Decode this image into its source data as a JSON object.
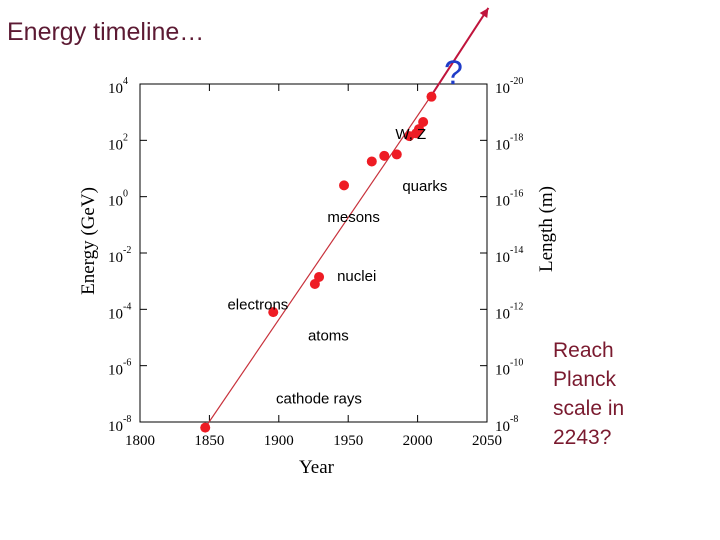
{
  "slide": {
    "title": "Energy timeline…",
    "side_note": [
      "Reach",
      "Planck",
      "scale in",
      "2243?"
    ]
  },
  "chart_data": {
    "type": "scatter",
    "title": "",
    "xlabel": "Year",
    "ylabel": "Energy (GeV)",
    "y2label": "Length (m)",
    "xlim": [
      1800,
      2050
    ],
    "x_ticks": [
      1800,
      1850,
      1900,
      1950,
      2000,
      2050
    ],
    "ylim": [
      -8,
      4
    ],
    "y_scale": "log10",
    "y_ticks_exponent": [
      4,
      2,
      0,
      -2,
      -4,
      -6,
      -8
    ],
    "y2_ticks_exponent": [
      -20,
      -18,
      -16,
      -14,
      -12,
      -10,
      -8
    ],
    "points": [
      {
        "x": 1847,
        "y": -8.2
      },
      {
        "x": 1896,
        "y": -4.1
      },
      {
        "x": 1926,
        "y": -3.1
      },
      {
        "x": 1929,
        "y": -2.85
      },
      {
        "x": 1947,
        "y": 0.4
      },
      {
        "x": 1967,
        "y": 1.25
      },
      {
        "x": 1976,
        "y": 1.45
      },
      {
        "x": 1985,
        "y": 1.5
      },
      {
        "x": 1994,
        "y": 2.15
      },
      {
        "x": 1999,
        "y": 2.25
      },
      {
        "x": 2001,
        "y": 2.4
      },
      {
        "x": 2004,
        "y": 2.65
      },
      {
        "x": 2010,
        "y": 3.55
      }
    ],
    "trend_line": {
      "from": {
        "x": 1847,
        "y": -8.2
      },
      "to": {
        "x": 2010,
        "y": 3.6
      }
    },
    "extrapolation": {
      "from": {
        "x": 2010,
        "y": 3.6
      },
      "to": {
        "x": 2051,
        "y": 6.7
      },
      "color": "#c0143c"
    },
    "marker_color": "#ee1c24",
    "annotations": [
      {
        "text": "W, Z",
        "x": 1984,
        "y": 2.05
      },
      {
        "text": "quarks",
        "x": 1989,
        "y": 0.2
      },
      {
        "text": "mesons",
        "x": 1935,
        "y": -0.9
      },
      {
        "text": "nuclei",
        "x": 1942,
        "y": -3.0
      },
      {
        "text": "electrons",
        "x": 1863,
        "y": -4.0
      },
      {
        "text": "atoms",
        "x": 1921,
        "y": -5.1
      },
      {
        "text": "cathode rays",
        "x": 1898,
        "y": -7.35
      },
      {
        "text": "?",
        "x": 2019,
        "y": 4.0
      }
    ]
  }
}
